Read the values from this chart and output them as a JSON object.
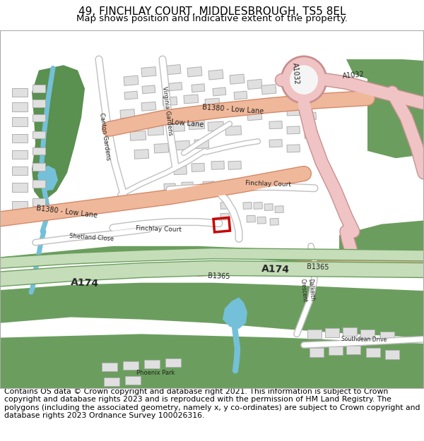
{
  "title_line1": "49, FINCHLAY COURT, MIDDLESBROUGH, TS5 8EL",
  "title_line2": "Map shows position and indicative extent of the property.",
  "footer_text": "Contains OS data © Crown copyright and database right 2021. This information is subject to Crown copyright and database rights 2023 and is reproduced with the permission of HM Land Registry. The polygons (including the associated geometry, namely x, y co-ordinates) are subject to Crown copyright and database rights 2023 Ordnance Survey 100026316.",
  "title_fontsize": 11,
  "subtitle_fontsize": 9.5,
  "footer_fontsize": 7.8,
  "fig_width": 6.0,
  "fig_height": 6.25,
  "bg_color": "#ffffff",
  "map_bg": "#f5f5f5",
  "green_dark": "#6b9e5e",
  "green_light": "#c5ddb8",
  "green_park": "#5a9050",
  "blue_water": "#74c0d8",
  "salmon_road": "#f0b89a",
  "salmon_edge": "#d4896a",
  "pink_road": "#f0c4c4",
  "pink_edge": "#c89090",
  "white_road": "#ffffff",
  "gray_road_edge": "#c0c0c0",
  "building_fill": "#e0e0e0",
  "building_edge": "#b0b0b0",
  "property_color": "#cc0000",
  "map_border": "#aaaaaa"
}
